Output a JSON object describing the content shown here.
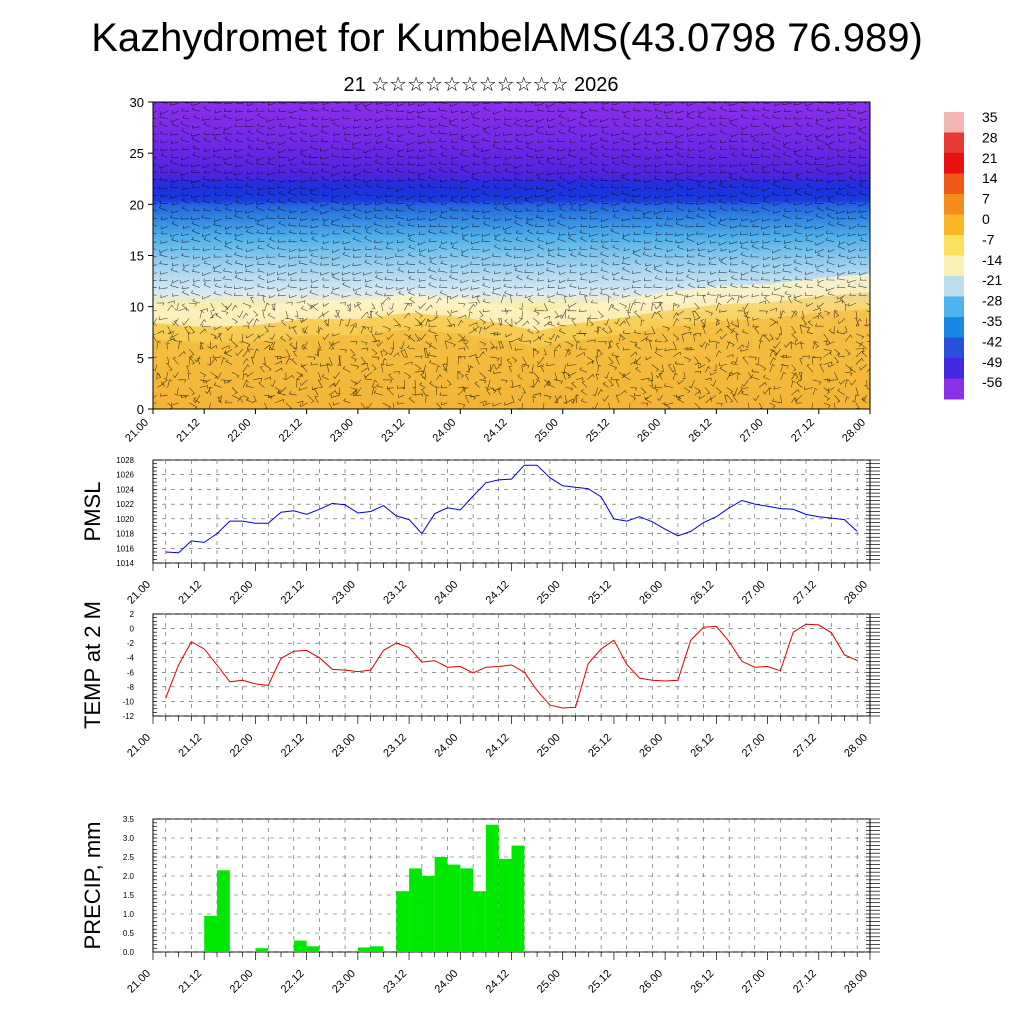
{
  "title": "Kazhydromet for KumbelAMS(43.0798 76.989)",
  "subtitle": "21 ☆☆☆☆☆☆☆☆☆☆☆ 2026",
  "colors": {
    "pmsl_line": "#0000e0",
    "temp_line": "#e00000",
    "precip_fill": "#00e800"
  },
  "chart_data": [
    {
      "type": "heatmap",
      "name": "temperature-wind-cross-section",
      "xlim": [
        0,
        28
      ],
      "ylim": [
        0,
        30
      ],
      "y_ticks": [
        0,
        5,
        10,
        15,
        20,
        25,
        30
      ],
      "x_tick_labels": [
        "21.00",
        "21.12",
        "22.00",
        "22.12",
        "23.00",
        "23.12",
        "24.00",
        "24.12",
        "25.00",
        "25.12",
        "26.00",
        "26.12",
        "27.00",
        "27.12",
        "28.00"
      ],
      "freezing_level": [
        [
          0,
          9.0
        ],
        [
          2,
          8.6
        ],
        [
          4,
          8.8
        ],
        [
          6,
          9.4
        ],
        [
          8,
          9.4
        ],
        [
          10,
          10.0
        ],
        [
          12,
          9.6
        ],
        [
          14,
          8.8
        ],
        [
          15,
          8.2
        ],
        [
          16,
          8.8
        ],
        [
          18,
          9.4
        ],
        [
          20,
          10.2
        ],
        [
          22,
          10.8
        ],
        [
          24,
          11.0
        ],
        [
          26,
          11.6
        ],
        [
          28,
          12.0
        ]
      ],
      "colorbar": {
        "labels": [
          "35",
          "28",
          "21",
          "14",
          "7",
          "0",
          "-7",
          "-14",
          "-21",
          "-28",
          "-35",
          "-42",
          "-49",
          "-56"
        ],
        "colors": [
          "#f4b6b4",
          "#e83a34",
          "#e81010",
          "#f05818",
          "#f48c1c",
          "#f8b824",
          "#fce05c",
          "#f8f0b4",
          "#bcdcf0",
          "#50b4ec",
          "#1888e4",
          "#2850dc",
          "#4028e0",
          "#8c30e8"
        ]
      }
    },
    {
      "type": "line",
      "name": "PMSL",
      "ylabel": "PMSL",
      "ylim": [
        1014,
        1028
      ],
      "y_ticks": [
        1014,
        1016,
        1018,
        1020,
        1022,
        1024,
        1026,
        1028
      ],
      "x_tick_labels": [
        "21.00",
        "21.12",
        "22.00",
        "22.12",
        "23.00",
        "23.12",
        "24.00",
        "24.12",
        "25.00",
        "25.12",
        "26.00",
        "26.12",
        "27.00",
        "27.12",
        "28.00"
      ],
      "xlim": [
        0,
        28
      ],
      "x": [
        0,
        0.5,
        1,
        1.5,
        2,
        2.5,
        3,
        3.5,
        4,
        4.5,
        5,
        5.5,
        6,
        6.5,
        7,
        7.5,
        8,
        8.5,
        9,
        9.5,
        10,
        10.5,
        11,
        11.5,
        12,
        12.5,
        13,
        13.5,
        14,
        14.5,
        15,
        15.5,
        16,
        16.5,
        17,
        17.5,
        18,
        18.5,
        19,
        19.5,
        20,
        20.5,
        21,
        21.5,
        22,
        22.5,
        23,
        23.5,
        24,
        24.5,
        25,
        25.5,
        26,
        26.5,
        27
      ],
      "values": [
        1015.5,
        1015.4,
        1017.0,
        1016.8,
        1018.0,
        1019.7,
        1019.7,
        1019.4,
        1019.4,
        1020.9,
        1021.1,
        1020.6,
        1021.3,
        1022.1,
        1021.9,
        1020.8,
        1021.0,
        1021.8,
        1020.4,
        1019.9,
        1018.0,
        1020.7,
        1021.5,
        1021.2,
        1023.1,
        1024.9,
        1025.3,
        1025.4,
        1027.3,
        1027.3,
        1025.6,
        1024.5,
        1024.3,
        1024.1,
        1023.0,
        1020.0,
        1019.7,
        1020.3,
        1019.6,
        1018.6,
        1017.7,
        1018.3,
        1019.5,
        1020.3,
        1021.5,
        1022.5,
        1022.0,
        1021.7,
        1021.4,
        1021.3,
        1020.6,
        1020.3,
        1020.1,
        1019.9,
        1018.3
      ]
    },
    {
      "type": "line",
      "name": "TEMP at 2 M",
      "ylabel": "TEMP at 2 M",
      "ylim": [
        -12,
        2
      ],
      "y_ticks": [
        -12,
        -10,
        -8,
        -6,
        -4,
        -2,
        0,
        2
      ],
      "x_tick_labels": [
        "21.00",
        "21.12",
        "22.00",
        "22.12",
        "23.00",
        "23.12",
        "24.00",
        "24.12",
        "25.00",
        "25.12",
        "26.00",
        "26.12",
        "27.00",
        "27.12",
        "28.00"
      ],
      "xlim": [
        0,
        28
      ],
      "x": [
        0,
        0.5,
        1,
        1.5,
        2,
        2.5,
        3,
        3.5,
        4,
        4.5,
        5,
        5.5,
        6,
        6.5,
        7,
        7.5,
        8,
        8.5,
        9,
        9.5,
        10,
        10.5,
        11,
        11.5,
        12,
        12.5,
        13,
        13.5,
        14,
        14.5,
        15,
        15.5,
        16,
        16.5,
        17,
        17.5,
        18,
        18.5,
        19,
        19.5,
        20,
        20.5,
        21,
        21.5,
        22,
        22.5,
        23,
        23.5,
        24,
        24.5,
        25,
        25.5,
        26,
        26.5,
        27
      ],
      "values": [
        -9.5,
        -5.0,
        -1.8,
        -2.8,
        -5.0,
        -7.3,
        -7.1,
        -7.6,
        -7.8,
        -4.1,
        -3.1,
        -3.0,
        -4.0,
        -5.6,
        -5.7,
        -5.9,
        -5.7,
        -3.0,
        -2.0,
        -2.6,
        -4.6,
        -4.4,
        -5.3,
        -5.2,
        -6.1,
        -5.3,
        -5.2,
        -5.0,
        -6.0,
        -8.5,
        -10.5,
        -10.9,
        -10.8,
        -4.8,
        -2.8,
        -1.6,
        -4.9,
        -6.8,
        -7.1,
        -7.2,
        -7.1,
        -1.6,
        0.2,
        0.3,
        -1.8,
        -4.5,
        -5.3,
        -5.2,
        -5.8,
        -0.5,
        0.6,
        0.5,
        -0.6,
        -3.6,
        -4.4
      ]
    },
    {
      "type": "bar",
      "name": "PRECIP, mm",
      "ylabel": "PRECIP, mm",
      "ylim": [
        0,
        3.5
      ],
      "y_ticks": [
        "0.0",
        "0.5",
        "1.0",
        "1.5",
        "2.0",
        "2.5",
        "3.0",
        "3.5"
      ],
      "x_tick_labels": [
        "21.00",
        "21.12",
        "22.00",
        "22.12",
        "23.00",
        "23.12",
        "24.00",
        "24.12",
        "25.00",
        "25.12",
        "26.00",
        "26.12",
        "27.00",
        "27.12",
        "28.00"
      ],
      "xlim": [
        0,
        28
      ],
      "x_start": [
        1.5,
        2.0,
        3.5,
        5.0,
        5.5,
        7.5,
        8.0,
        9.0,
        9.5,
        10.0,
        10.5,
        11.0,
        11.5,
        12.0,
        12.5,
        13.0,
        13.5,
        14.0,
        14.5
      ],
      "values": [
        0.95,
        2.15,
        0.1,
        0.3,
        0.15,
        0.12,
        0.15,
        1.6,
        2.2,
        2.0,
        2.5,
        2.3,
        2.2,
        1.6,
        3.35,
        2.45,
        2.8,
        0.03,
        0.0
      ]
    }
  ]
}
